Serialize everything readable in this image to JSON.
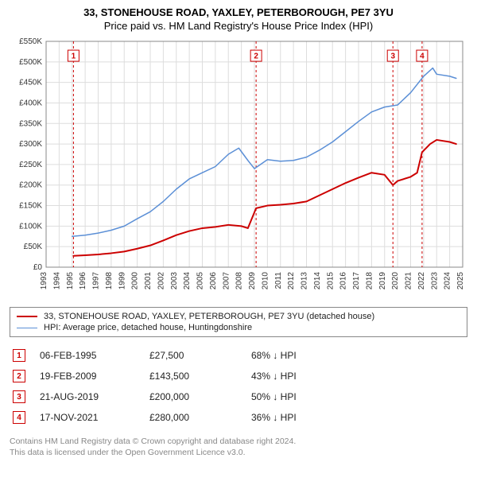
{
  "title": {
    "line1": "33, STONEHOUSE ROAD, YAXLEY, PETERBOROUGH, PE7 3YU",
    "line2": "Price paid vs. HM Land Registry's House Price Index (HPI)"
  },
  "chart": {
    "type": "line",
    "background_color": "#ffffff",
    "grid_color": "#dddddd",
    "plot_border_color": "#888888",
    "y_axis": {
      "min": 0,
      "max": 550000,
      "tick_step": 50000,
      "labels": [
        "£0",
        "£50K",
        "£100K",
        "£150K",
        "£200K",
        "£250K",
        "£300K",
        "£350K",
        "£400K",
        "£450K",
        "£500K",
        "£550K"
      ],
      "fontsize": 10,
      "color": "#333333"
    },
    "x_axis": {
      "min": 1993,
      "max": 2025,
      "tick_step": 1,
      "labels": [
        "1993",
        "1994",
        "1995",
        "1996",
        "1997",
        "1998",
        "1999",
        "2000",
        "2001",
        "2002",
        "2003",
        "2004",
        "2005",
        "2006",
        "2007",
        "2008",
        "2009",
        "2010",
        "2011",
        "2012",
        "2013",
        "2014",
        "2015",
        "2016",
        "2017",
        "2018",
        "2019",
        "2020",
        "2021",
        "2022",
        "2023",
        "2024",
        "2025"
      ],
      "rotation": -90,
      "fontsize": 10,
      "color": "#333333"
    },
    "series": [
      {
        "name": "price_paid",
        "label": "33, STONEHOUSE ROAD, YAXLEY, PETERBOROUGH, PE7 3YU (detached house)",
        "color": "#cc0000",
        "line_width": 2,
        "points": [
          [
            1995.1,
            27500
          ],
          [
            1996,
            29000
          ],
          [
            1997,
            31000
          ],
          [
            1998,
            34000
          ],
          [
            1999,
            38000
          ],
          [
            2000,
            45000
          ],
          [
            2001,
            53000
          ],
          [
            2002,
            65000
          ],
          [
            2003,
            78000
          ],
          [
            2004,
            88000
          ],
          [
            2005,
            95000
          ],
          [
            2006,
            98000
          ],
          [
            2007,
            103000
          ],
          [
            2008,
            100000
          ],
          [
            2008.5,
            95000
          ],
          [
            2009.13,
            143500
          ],
          [
            2010,
            150000
          ],
          [
            2011,
            152000
          ],
          [
            2012,
            155000
          ],
          [
            2013,
            160000
          ],
          [
            2014,
            175000
          ],
          [
            2015,
            190000
          ],
          [
            2016,
            205000
          ],
          [
            2017,
            218000
          ],
          [
            2018,
            230000
          ],
          [
            2019,
            225000
          ],
          [
            2019.64,
            200000
          ],
          [
            2020,
            210000
          ],
          [
            2021,
            220000
          ],
          [
            2021.5,
            230000
          ],
          [
            2021.88,
            280000
          ],
          [
            2022.5,
            300000
          ],
          [
            2023,
            310000
          ],
          [
            2024,
            305000
          ],
          [
            2024.5,
            300000
          ]
        ]
      },
      {
        "name": "hpi",
        "label": "HPI: Average price, detached house, Huntingdonshire",
        "color": "#5b8fd6",
        "line_width": 1.5,
        "points": [
          [
            1995,
            75000
          ],
          [
            1996,
            78000
          ],
          [
            1997,
            83000
          ],
          [
            1998,
            90000
          ],
          [
            1999,
            100000
          ],
          [
            2000,
            118000
          ],
          [
            2001,
            135000
          ],
          [
            2002,
            160000
          ],
          [
            2003,
            190000
          ],
          [
            2004,
            215000
          ],
          [
            2005,
            230000
          ],
          [
            2006,
            245000
          ],
          [
            2007,
            275000
          ],
          [
            2007.8,
            290000
          ],
          [
            2008.5,
            260000
          ],
          [
            2009,
            240000
          ],
          [
            2010,
            262000
          ],
          [
            2011,
            258000
          ],
          [
            2012,
            260000
          ],
          [
            2013,
            268000
          ],
          [
            2014,
            285000
          ],
          [
            2015,
            305000
          ],
          [
            2016,
            330000
          ],
          [
            2017,
            355000
          ],
          [
            2018,
            378000
          ],
          [
            2019,
            390000
          ],
          [
            2020,
            395000
          ],
          [
            2021,
            425000
          ],
          [
            2022,
            465000
          ],
          [
            2022.7,
            485000
          ],
          [
            2023,
            470000
          ],
          [
            2024,
            465000
          ],
          [
            2024.5,
            460000
          ]
        ]
      }
    ],
    "markers": [
      {
        "n": "1",
        "year": 1995.1,
        "y_top": 515000
      },
      {
        "n": "2",
        "year": 2009.13,
        "y_top": 515000
      },
      {
        "n": "3",
        "year": 2019.64,
        "y_top": 515000
      },
      {
        "n": "4",
        "year": 2021.88,
        "y_top": 515000
      }
    ],
    "marker_style": {
      "border_color": "#cc0000",
      "text_color": "#cc0000",
      "line_color": "#cc0000",
      "line_dash": "3,3",
      "box_size": 14,
      "fontsize": 10
    }
  },
  "legend": {
    "items": [
      {
        "color": "#cc0000",
        "width": 2,
        "label": "33, STONEHOUSE ROAD, YAXLEY, PETERBOROUGH, PE7 3YU (detached house)"
      },
      {
        "color": "#5b8fd6",
        "width": 1.5,
        "label": "HPI: Average price, detached house, Huntingdonshire"
      }
    ]
  },
  "transactions": [
    {
      "n": "1",
      "date": "06-FEB-1995",
      "price": "£27,500",
      "delta": "68% ↓ HPI"
    },
    {
      "n": "2",
      "date": "19-FEB-2009",
      "price": "£143,500",
      "delta": "43% ↓ HPI"
    },
    {
      "n": "3",
      "date": "21-AUG-2019",
      "price": "£200,000",
      "delta": "50% ↓ HPI"
    },
    {
      "n": "4",
      "date": "17-NOV-2021",
      "price": "£280,000",
      "delta": "36% ↓ HPI"
    }
  ],
  "footer": {
    "line1": "Contains HM Land Registry data © Crown copyright and database right 2024.",
    "line2": "This data is licensed under the Open Government Licence v3.0."
  }
}
